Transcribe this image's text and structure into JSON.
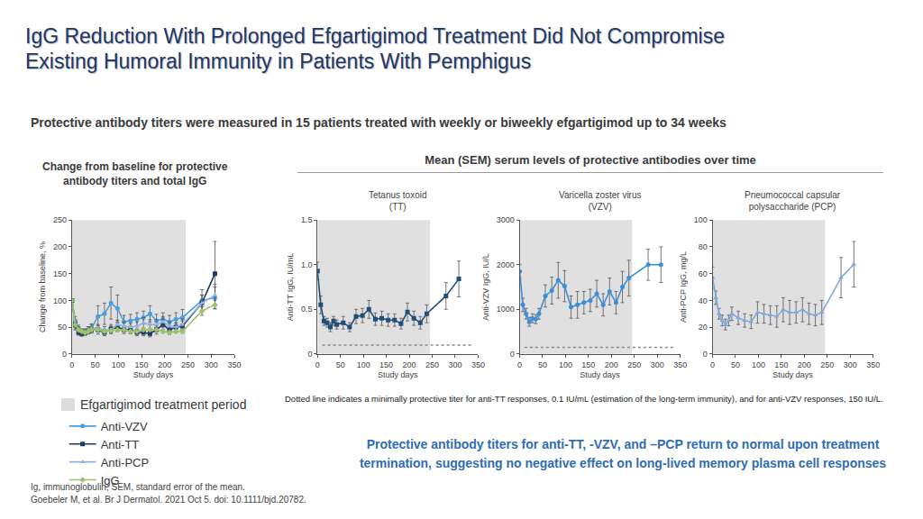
{
  "title": [
    "IgG Reduction With Prolonged Efgartigimod Treatment Did Not Compromise",
    "Existing Humoral Immunity in Patients With Pemphigus"
  ],
  "subtitle": "Protective antibody titers were measured in 15 patients treated with weekly or biweekly efgartigimod up to 34 weeks",
  "right_heading": "Mean (SEM) serum levels of protective antibodies over time",
  "shading_label": "Efgartigimod treatment period",
  "threshold_note": "Dotted line indicates a minimally protective titer for anti-TT responses, 0.1 IU/mL (estimation of the long-term immunity), and for anti-VZV responses, 150 IU/L.",
  "conclusion": "Protective antibody titers for anti-TT, -VZV, and –PCP return to normal upon treatment termination, suggesting no negative effect on long-lived memory plasma cell responses",
  "footnotes": [
    "Ig, immunoglobulin; SEM, standard error of the mean.",
    "Goebeler M, et al. Br J Dermatol. 2021 Oct 5. doi: 10.1111/bjd.20782."
  ],
  "chart_data": [
    {
      "type": "line",
      "title": [
        "Change from baseline for protective",
        "antibody titers and total IgG"
      ],
      "x_label": "Study days",
      "y_label": "Change from baseline, %",
      "x": [
        0,
        7,
        14,
        21,
        28,
        35,
        42,
        56,
        70,
        84,
        98,
        112,
        126,
        140,
        154,
        168,
        182,
        196,
        210,
        224,
        238,
        280,
        308
      ],
      "xlim": [
        0,
        350
      ],
      "xticks": [
        0,
        50,
        100,
        150,
        200,
        250,
        300,
        350
      ],
      "ylim": [
        0,
        250
      ],
      "yticks": [
        0,
        50,
        100,
        150,
        200,
        250
      ],
      "treatment_period": [
        0,
        245
      ],
      "legend": "bottom-left",
      "series": [
        {
          "name": "Anti-VZV",
          "color": "#4a9fe0",
          "marker": "circle",
          "line_style": "solid",
          "values": [
            100,
            60,
            48,
            40,
            42,
            45,
            48,
            70,
            75,
            95,
            85,
            60,
            62,
            65,
            68,
            75,
            62,
            65,
            60,
            65,
            68,
            100,
            105
          ],
          "errors": [
            0,
            10,
            6,
            5,
            5,
            6,
            8,
            20,
            20,
            30,
            25,
            12,
            12,
            12,
            12,
            15,
            12,
            12,
            12,
            12,
            15,
            20,
            20
          ]
        },
        {
          "name": "Anti-TT",
          "color": "#1f3864",
          "marker": "square",
          "line_style": "solid",
          "values": [
            100,
            55,
            40,
            38,
            40,
            42,
            45,
            45,
            40,
            47,
            50,
            45,
            45,
            40,
            40,
            38,
            45,
            55,
            45,
            50,
            52,
            95,
            150
          ],
          "errors": [
            0,
            8,
            5,
            5,
            5,
            5,
            6,
            8,
            6,
            8,
            8,
            7,
            7,
            6,
            6,
            6,
            8,
            10,
            8,
            8,
            10,
            15,
            60
          ]
        },
        {
          "name": "Anti-PCP",
          "color": "#8fb4e3",
          "marker": "triangle-up",
          "line_style": "solid",
          "values": [
            100,
            55,
            45,
            42,
            40,
            45,
            48,
            48,
            45,
            45,
            55,
            52,
            50,
            52,
            58,
            55,
            55,
            60,
            52,
            50,
            55,
            95,
            110
          ],
          "errors": [
            0,
            10,
            6,
            5,
            5,
            6,
            6,
            7,
            6,
            7,
            8,
            8,
            7,
            8,
            10,
            9,
            9,
            10,
            8,
            8,
            10,
            15,
            20
          ]
        },
        {
          "name": "IgG",
          "color": "#9bc36b",
          "marker": "diamond",
          "line_style": "solid",
          "values": [
            100,
            55,
            45,
            42,
            40,
            42,
            45,
            45,
            42,
            44,
            45,
            45,
            42,
            42,
            45,
            45,
            45,
            42,
            40,
            42,
            42,
            80,
            92
          ],
          "errors": [
            0,
            5,
            3,
            3,
            3,
            3,
            3,
            3,
            3,
            3,
            3,
            3,
            3,
            3,
            3,
            3,
            3,
            3,
            3,
            3,
            3,
            8,
            8
          ]
        }
      ]
    },
    {
      "type": "line",
      "title": [
        "Tetanus toxoid",
        "(TT)"
      ],
      "x_label": "Study days",
      "y_label": "Anti-TT IgG, IU/mL",
      "x": [
        0,
        7,
        14,
        21,
        28,
        35,
        42,
        56,
        70,
        84,
        98,
        112,
        126,
        140,
        154,
        168,
        182,
        196,
        210,
        224,
        238,
        280,
        308
      ],
      "xlim": [
        0,
        350
      ],
      "xticks": [
        0,
        50,
        100,
        150,
        200,
        250,
        300,
        350
      ],
      "ylim": [
        0,
        1.5
      ],
      "yticks": [
        0,
        0.5,
        {
          "value": 1,
          "label": "1.0"
        },
        1.5
      ],
      "treatment_period": [
        0,
        245
      ],
      "threshold": 0.1,
      "series": [
        {
          "name": "Anti-TT",
          "color": "#1f4e79",
          "marker": "square",
          "line_style": "solid",
          "values": [
            0.93,
            0.55,
            0.37,
            0.35,
            0.3,
            0.37,
            0.33,
            0.35,
            0.3,
            0.42,
            0.43,
            0.5,
            0.39,
            0.4,
            0.38,
            0.38,
            0.34,
            0.47,
            0.4,
            0.35,
            0.45,
            0.65,
            0.84
          ],
          "errors": [
            0.1,
            0.1,
            0.05,
            0.05,
            0.05,
            0.05,
            0.05,
            0.07,
            0.05,
            0.08,
            0.08,
            0.1,
            0.07,
            0.08,
            0.07,
            0.07,
            0.06,
            0.1,
            0.08,
            0.07,
            0.1,
            0.15,
            0.2
          ]
        }
      ]
    },
    {
      "type": "line",
      "title": [
        "Varicella zoster virus",
        "(VZV)"
      ],
      "x_label": "Study days",
      "y_label": "Anti-VZV IgG, IU/L",
      "x": [
        0,
        7,
        14,
        21,
        28,
        35,
        42,
        56,
        70,
        84,
        98,
        112,
        126,
        140,
        154,
        168,
        182,
        196,
        210,
        224,
        238,
        280,
        308
      ],
      "xlim": [
        0,
        350
      ],
      "xticks": [
        0,
        50,
        100,
        150,
        200,
        250,
        300,
        350
      ],
      "ylim": [
        0,
        3000
      ],
      "yticks": [
        0,
        1000,
        2000,
        3000
      ],
      "treatment_period": [
        0,
        245
      ],
      "threshold": 150,
      "series": [
        {
          "name": "Anti-VZV",
          "color": "#3b8fd9",
          "marker": "circle",
          "line_style": "solid",
          "values": [
            1850,
            1100,
            900,
            720,
            800,
            780,
            900,
            1300,
            1420,
            1650,
            1520,
            1050,
            1100,
            1150,
            1200,
            1350,
            1100,
            1400,
            1150,
            1500,
            1700,
            2000,
            2000
          ],
          "errors": [
            150,
            150,
            120,
            100,
            100,
            100,
            120,
            250,
            300,
            400,
            350,
            250,
            300,
            250,
            250,
            300,
            250,
            300,
            250,
            350,
            400,
            350,
            400
          ]
        }
      ]
    },
    {
      "type": "line",
      "title": [
        "Pneumococcal capsular",
        "polysaccharide (PCP)"
      ],
      "x_label": "Study days",
      "y_label": "Anti-PCP IgG, mg/L",
      "x": [
        0,
        7,
        14,
        21,
        28,
        35,
        42,
        56,
        70,
        84,
        98,
        112,
        126,
        140,
        154,
        168,
        182,
        196,
        210,
        224,
        238,
        280,
        308
      ],
      "xlim": [
        0,
        350
      ],
      "xticks": [
        0,
        50,
        100,
        150,
        200,
        250,
        300,
        350
      ],
      "ylim": [
        0,
        100
      ],
      "yticks": [
        0,
        20,
        40,
        60,
        80,
        100
      ],
      "treatment_period": [
        0,
        245
      ],
      "series": [
        {
          "name": "Anti-PCP",
          "color": "#7fa8dc",
          "marker": "triangle-up",
          "line_style": "solid",
          "values": [
            57,
            42,
            30,
            25,
            22,
            25,
            30,
            27,
            25,
            24,
            31,
            30,
            29,
            28,
            33,
            31,
            31,
            33,
            30,
            29,
            31,
            57,
            67
          ],
          "errors": [
            8,
            5,
            4,
            4,
            4,
            4,
            5,
            5,
            5,
            5,
            8,
            7,
            7,
            8,
            9,
            9,
            8,
            9,
            8,
            8,
            9,
            15,
            17
          ]
        }
      ]
    }
  ]
}
